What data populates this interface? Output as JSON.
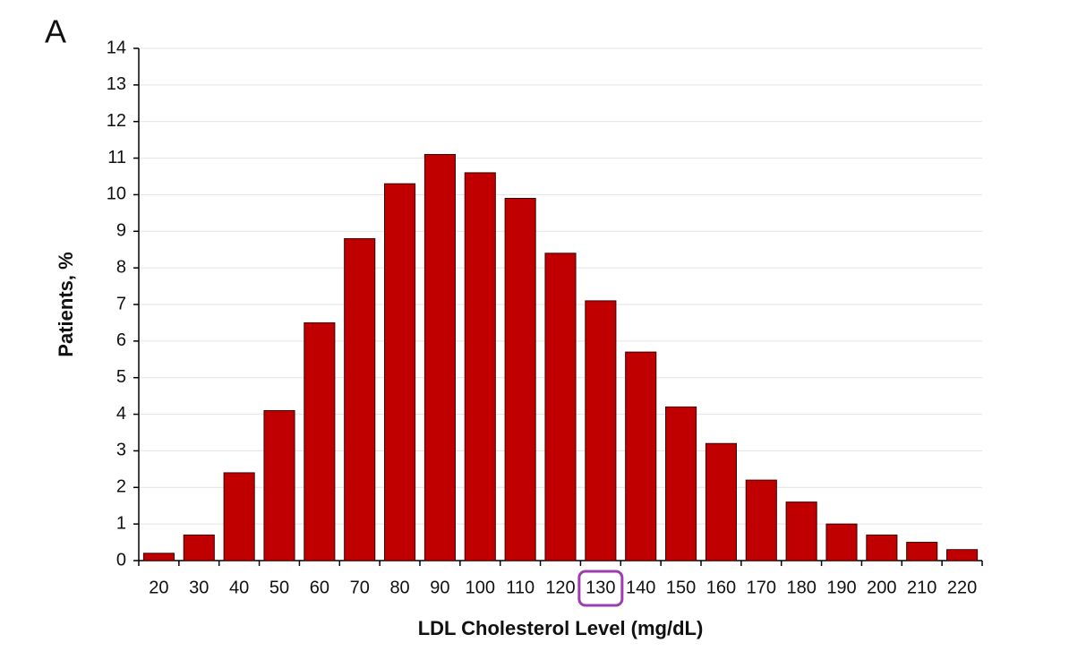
{
  "chart_data": {
    "type": "bar",
    "panel_label": "A",
    "x_label": "LDL Cholesterol Level (mg/dL)",
    "y_label": "Patients, %",
    "categories": [
      "20",
      "30",
      "40",
      "50",
      "60",
      "70",
      "80",
      "90",
      "100",
      "110",
      "120",
      "130",
      "140",
      "150",
      "160",
      "170",
      "180",
      "190",
      "200",
      "210",
      "220"
    ],
    "values": [
      0.2,
      0.7,
      2.4,
      4.1,
      6.5,
      8.8,
      10.3,
      11.1,
      10.6,
      9.9,
      8.4,
      7.1,
      5.7,
      4.2,
      3.2,
      2.2,
      1.6,
      1.0,
      0.7,
      0.5,
      0.3
    ],
    "color": "#c00000",
    "ylim": [
      0,
      14
    ],
    "yticks": [
      0,
      1,
      2,
      3,
      4,
      5,
      6,
      7,
      8,
      9,
      10,
      11,
      12,
      13,
      14
    ],
    "grid": true,
    "highlighted_category": "130",
    "highlight_color": "#9b3fb0"
  }
}
